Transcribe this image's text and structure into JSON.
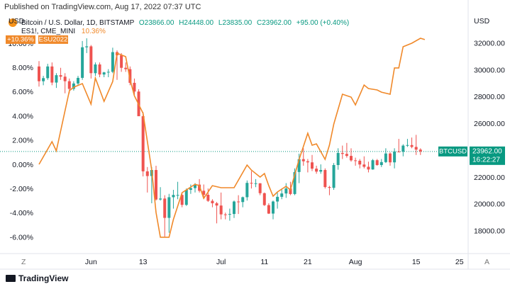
{
  "published": "Published on TradingView.com, Aug 17, 2022 07:37 UTC",
  "footer": "TradingView",
  "chart_data": {
    "type": "candlestick",
    "title": "Bitcoin / U.S. Dollar, 1D, BITSTAMP",
    "legend_values": [
      "O23866.00",
      "H24448.00",
      "L23835.00",
      "C23962.00",
      "+95.00 (+0.40%)"
    ],
    "y_axis_label": "USD",
    "y2_axis_label": "USD",
    "up_color": "#26a69a",
    "down_color": "#ef5350",
    "xlim": [
      -21,
      87
    ],
    "xticks": [
      {
        "value": 0,
        "label": "Jun"
      },
      {
        "value": 12,
        "label": "13"
      },
      {
        "value": 30,
        "label": "Jul"
      },
      {
        "value": 40,
        "label": "11"
      },
      {
        "value": 50,
        "label": "21"
      },
      {
        "value": 61,
        "label": "Aug"
      },
      {
        "value": 75,
        "label": "15"
      },
      {
        "value": 85,
        "label": "25"
      }
    ],
    "ylim": [
      16400,
      34200
    ],
    "yticks": [
      {
        "value": 18000,
        "label": "18000.00"
      },
      {
        "value": 20000,
        "label": "20000.00"
      },
      {
        "value": 22000,
        "label": "22000.00"
      },
      {
        "value": 24000,
        "label": "24000.00"
      },
      {
        "value": 26000,
        "label": "26000.00"
      },
      {
        "value": 28000,
        "label": "28000.00"
      },
      {
        "value": 30000,
        "label": "30000.00"
      },
      {
        "value": 32000,
        "label": "32000.00"
      }
    ],
    "y2lim": [
      -7.25,
      12.46
    ],
    "y2ticks": [
      {
        "value": -6,
        "label": "-6.00%"
      },
      {
        "value": -4,
        "label": "-4.00%"
      },
      {
        "value": -2,
        "label": "-2.00%"
      },
      {
        "value": 0,
        "label": "0.00%"
      },
      {
        "value": 2,
        "label": "2.00%"
      },
      {
        "value": 4,
        "label": "4.00%"
      },
      {
        "value": 6,
        "label": "6.00%"
      },
      {
        "value": 8,
        "label": "8.00%"
      },
      {
        "value": 10,
        "label": "10.00%"
      }
    ],
    "x": [
      -12,
      -11,
      -10,
      -9,
      -8,
      -7,
      -6,
      -5,
      -4,
      -3,
      -2,
      -1,
      0,
      1,
      2,
      3,
      4,
      5,
      6,
      7,
      8,
      9,
      10,
      11,
      12,
      13,
      14,
      15,
      16,
      17,
      18,
      19,
      20,
      21,
      22,
      23,
      24,
      25,
      26,
      27,
      28,
      29,
      30,
      31,
      32,
      33,
      34,
      35,
      36,
      37,
      38,
      39,
      40,
      41,
      42,
      43,
      44,
      45,
      46,
      47,
      48,
      49,
      50,
      51,
      52,
      53,
      54,
      55,
      56,
      57,
      58,
      59,
      60,
      61,
      62,
      63,
      64,
      65,
      66,
      67,
      68,
      69,
      70,
      71,
      72,
      73,
      74,
      75,
      76
    ],
    "open": [
      30300,
      29200,
      29430,
      30300,
      29100,
      29650,
      29540,
      29200,
      28630,
      29030,
      29450,
      31730,
      31800,
      29800,
      30450,
      29700,
      29860,
      29900,
      31370,
      31130,
      30200,
      30100,
      29080,
      28430,
      26590,
      22480,
      22130,
      22580,
      20380,
      20450,
      19010,
      20550,
      20720,
      20720,
      19980,
      21100,
      21230,
      21490,
      21030,
      20730,
      20280,
      20100,
      19930,
      19270,
      19250,
      19300,
      20230,
      20190,
      20550,
      21620,
      21590,
      21590,
      20850,
      19960,
      19330,
      20230,
      20580,
      20830,
      21200,
      20790,
      22430,
      23390,
      23230,
      23150,
      22680,
      22460,
      22580,
      21310,
      21250,
      22950,
      23850,
      23780,
      23630,
      23300,
      23270,
      22990,
      22820,
      22620,
      23310,
      22950,
      23170,
      23810,
      23150,
      23950,
      23940,
      24400,
      24440,
      24300,
      24100
    ],
    "high": [
      30700,
      29600,
      30500,
      30600,
      29800,
      30200,
      29800,
      29400,
      29200,
      29600,
      32200,
      32400,
      31900,
      30600,
      30600,
      29900,
      30100,
      31700,
      31500,
      31300,
      30600,
      30300,
      29400,
      28600,
      26900,
      22800,
      22800,
      22900,
      21300,
      20700,
      20800,
      21100,
      21700,
      20900,
      21200,
      21500,
      21600,
      21900,
      21500,
      21200,
      20400,
      20200,
      20900,
      19400,
      19700,
      20300,
      20700,
      20600,
      21800,
      22500,
      21900,
      21600,
      20900,
      20100,
      20300,
      20900,
      21200,
      21600,
      21700,
      22700,
      23800,
      24200,
      23400,
      23700,
      22900,
      23000,
      22700,
      21400,
      23100,
      24200,
      24400,
      24600,
      24200,
      23500,
      23400,
      23600,
      23200,
      23400,
      23400,
      23400,
      24200,
      23900,
      24200,
      24900,
      24500,
      24900,
      25000,
      25200,
      24200
    ],
    "low": [
      28800,
      28900,
      29300,
      28900,
      28700,
      29300,
      28300,
      28300,
      28500,
      28900,
      29300,
      31300,
      29400,
      29600,
      29500,
      29500,
      29500,
      29800,
      29300,
      29900,
      29900,
      28900,
      28100,
      26600,
      22100,
      20900,
      20100,
      20300,
      20300,
      17600,
      17900,
      19700,
      20400,
      19800,
      19900,
      20800,
      20900,
      20900,
      20500,
      20200,
      19800,
      18600,
      18900,
      18900,
      18800,
      19000,
      19300,
      19800,
      20300,
      21200,
      21300,
      20700,
      19900,
      19300,
      18900,
      19700,
      20400,
      20500,
      20700,
      20700,
      21600,
      22900,
      22400,
      22500,
      22300,
      22300,
      21200,
      20700,
      21100,
      22600,
      23400,
      23500,
      23200,
      22900,
      22700,
      22700,
      22400,
      22600,
      22900,
      22800,
      23100,
      22900,
      22700,
      23900,
      23600,
      24300,
      24200,
      23700,
      23700
    ],
    "close": [
      29200,
      29430,
      30300,
      29100,
      29650,
      29540,
      29200,
      28630,
      29030,
      29450,
      31730,
      31800,
      29800,
      30450,
      29700,
      29860,
      29900,
      31370,
      31130,
      30200,
      30100,
      29080,
      28430,
      26590,
      22480,
      22130,
      22580,
      20380,
      20450,
      19010,
      20550,
      20720,
      20720,
      19980,
      21100,
      21230,
      21490,
      21030,
      20730,
      20280,
      20100,
      19930,
      19270,
      19250,
      19300,
      20230,
      20190,
      20550,
      21620,
      21590,
      21590,
      20850,
      19960,
      19330,
      20230,
      20580,
      20830,
      21200,
      20790,
      22430,
      23390,
      23230,
      23150,
      22680,
      22460,
      22580,
      21310,
      21250,
      22950,
      23850,
      23780,
      23630,
      23300,
      23270,
      22990,
      22820,
      22620,
      23310,
      22950,
      23170,
      23810,
      23150,
      23950,
      23940,
      24400,
      24440,
      24300,
      24100,
      23962
    ],
    "last_price": {
      "symbol": "BTCUSD",
      "value": 23962,
      "label": "23962.00",
      "countdown": "16:22:27",
      "color": "#089981"
    },
    "overlay": {
      "type": "line",
      "name": "ES1!, CME_MINI",
      "value_label": "10.36%",
      "axis": "y2",
      "color": "#f0892a",
      "x": [
        -12,
        -9,
        -8,
        -5,
        -4,
        -2,
        0,
        1,
        3,
        5,
        6,
        8,
        9,
        10,
        12,
        14,
        15,
        16,
        18,
        19,
        21,
        22,
        24,
        25,
        26,
        28,
        30,
        33,
        36,
        37,
        39,
        40,
        41,
        42,
        43,
        45,
        46,
        48,
        50,
        51,
        52,
        54,
        55,
        56,
        58,
        60,
        61,
        63,
        64,
        66,
        67,
        69,
        70,
        71,
        72,
        74,
        76,
        77
      ],
      "values": [
        0.06,
        1.93,
        1.17,
        6.14,
        6.43,
        6.73,
        5.03,
        7.19,
        5.26,
        6.9,
        9.24,
        8.95,
        7.08,
        5.73,
        4.27,
        -0.41,
        -3.92,
        -5.96,
        -5.96,
        -4.5,
        -2.28,
        -2.05,
        -1.58,
        -1.7,
        -2.75,
        -1.7,
        -1.87,
        -1.87,
        0,
        -0.41,
        -0.99,
        -0.7,
        -1.7,
        -2.57,
        -2.22,
        -1.75,
        -2.05,
        0.47,
        2.63,
        1.64,
        1.75,
        0.47,
        1.64,
        3.39,
        5.85,
        5.61,
        4.97,
        6.61,
        6.32,
        6.2,
        6.02,
        5.85,
        8.02,
        8.02,
        9.77,
        10.06,
        10.47,
        10.36
      ],
      "tag": {
        "value": 10.36,
        "label": "+10.36%",
        "symbol": "ESU2022"
      }
    }
  }
}
